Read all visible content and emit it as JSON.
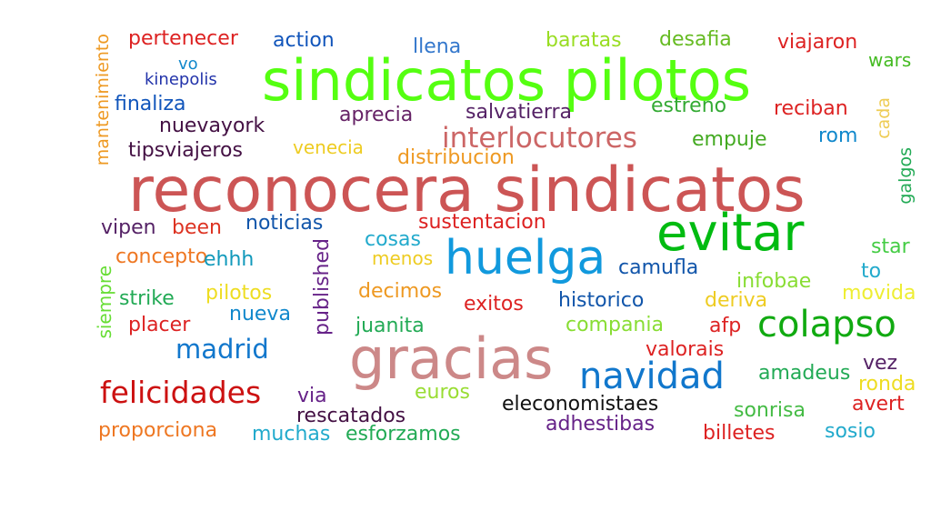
{
  "words": {
    "reconocera_sindicatos": {
      "text": "reconocera sindicatos",
      "color": "#cc5555"
    },
    "sindicatos_pilotos": {
      "text": "sindicatos pilotos",
      "color": "#55ff11"
    },
    "evitar": {
      "text": "evitar",
      "color": "#00bb11"
    },
    "huelga": {
      "text": "huelga",
      "color": "#1199dd"
    },
    "gracias": {
      "text": "gracias",
      "color": "#cc8888"
    },
    "colapso": {
      "text": "colapso",
      "color": "#11aa11"
    },
    "navidad": {
      "text": "navidad",
      "color": "#1177cc"
    },
    "felicidades": {
      "text": "felicidades",
      "color": "#cc1111"
    },
    "interlocutores": {
      "text": "interlocutores",
      "color": "#cc6666"
    },
    "madrid": {
      "text": "madrid",
      "color": "#1177cc"
    },
    "mantenimiento": {
      "text": "mantenimiento",
      "color": "#ee9922"
    },
    "pertenecer": {
      "text": "pertenecer",
      "color": "#dd2222"
    },
    "action": {
      "text": "action",
      "color": "#1155bb"
    },
    "llena": {
      "text": "llena",
      "color": "#3377cc"
    },
    "baratas": {
      "text": "baratas",
      "color": "#99dd22"
    },
    "desafia": {
      "text": "desafia",
      "color": "#66bb22"
    },
    "viajaron": {
      "text": "viajaron",
      "color": "#dd2222"
    },
    "vo": {
      "text": "vo",
      "color": "#1188cc"
    },
    "wars": {
      "text": "wars",
      "color": "#44bb22"
    },
    "kinepolis": {
      "text": "kinepolis",
      "color": "#2233aa"
    },
    "finaliza": {
      "text": "finaliza",
      "color": "#1155bb"
    },
    "aprecia": {
      "text": "aprecia",
      "color": "#662266"
    },
    "salvatierra": {
      "text": "salvatierra",
      "color": "#552266"
    },
    "estreno": {
      "text": "estreno",
      "color": "#33aa33"
    },
    "reciban": {
      "text": "reciban",
      "color": "#dd2222"
    },
    "nuevayork": {
      "text": "nuevayork",
      "color": "#441144"
    },
    "cada": {
      "text": "cada",
      "color": "#eecc55"
    },
    "rom": {
      "text": "rom",
      "color": "#1188cc"
    },
    "empuje": {
      "text": "empuje",
      "color": "#44aa22"
    },
    "tipsviajeros": {
      "text": "tipsviajeros",
      "color": "#441144"
    },
    "venecia": {
      "text": "venecia",
      "color": "#eecc22"
    },
    "distribucion": {
      "text": "distribucion",
      "color": "#ee9922"
    },
    "galgos": {
      "text": "galgos",
      "color": "#22aa55"
    },
    "vipen": {
      "text": "vipen",
      "color": "#552266"
    },
    "been": {
      "text": "been",
      "color": "#dd3322"
    },
    "noticias": {
      "text": "noticias",
      "color": "#1155aa"
    },
    "sustentacion": {
      "text": "sustentacion",
      "color": "#dd2222"
    },
    "star": {
      "text": "star",
      "color": "#44cc44"
    },
    "cosas": {
      "text": "cosas",
      "color": "#22aacc"
    },
    "published": {
      "text": "published",
      "color": "#662288"
    },
    "concepto": {
      "text": "concepto",
      "color": "#ee7722"
    },
    "ehhh": {
      "text": "ehhh",
      "color": "#1199bb"
    },
    "menos": {
      "text": "menos",
      "color": "#eecc22"
    },
    "camufla": {
      "text": "camufla",
      "color": "#1155aa"
    },
    "to": {
      "text": "to",
      "color": "#22aacc"
    },
    "infobae": {
      "text": "infobae",
      "color": "#88dd33"
    },
    "siempre": {
      "text": "siempre",
      "color": "#66dd33"
    },
    "strike": {
      "text": "strike",
      "color": "#22aa55"
    },
    "pilotos": {
      "text": "pilotos",
      "color": "#eedd22"
    },
    "decimos": {
      "text": "decimos",
      "color": "#ee9922"
    },
    "exitos": {
      "text": "exitos",
      "color": "#dd2222"
    },
    "historico": {
      "text": "historico",
      "color": "#1155aa"
    },
    "deriva": {
      "text": "deriva",
      "color": "#eecc22"
    },
    "movida": {
      "text": "movida",
      "color": "#eeee33"
    },
    "nueva": {
      "text": "nueva",
      "color": "#1188cc"
    },
    "placer": {
      "text": "placer",
      "color": "#dd2222"
    },
    "juanita": {
      "text": "juanita",
      "color": "#22aa55"
    },
    "compania": {
      "text": "compania",
      "color": "#88dd33"
    },
    "afp": {
      "text": "afp",
      "color": "#dd2222"
    },
    "valorais": {
      "text": "valorais",
      "color": "#dd2222"
    },
    "amadeus": {
      "text": "amadeus",
      "color": "#22aa55"
    },
    "vez": {
      "text": "vez",
      "color": "#552266"
    },
    "ronda": {
      "text": "ronda",
      "color": "#eedd22"
    },
    "via": {
      "text": "via",
      "color": "#662288"
    },
    "euros": {
      "text": "euros",
      "color": "#99dd33"
    },
    "eleconomistaes": {
      "text": "eleconomistaes",
      "color": "#111111"
    },
    "sonrisa": {
      "text": "sonrisa",
      "color": "#44bb44"
    },
    "avert": {
      "text": "avert",
      "color": "#dd2222"
    },
    "rescatados": {
      "text": "rescatados",
      "color": "#441144"
    },
    "adhestibas": {
      "text": "adhestibas",
      "color": "#662288"
    },
    "proporciona": {
      "text": "proporciona",
      "color": "#ee7722"
    },
    "muchas": {
      "text": "muchas",
      "color": "#22aacc"
    },
    "esforzamos": {
      "text": "esforzamos",
      "color": "#22aa55"
    },
    "billetes": {
      "text": "billetes",
      "color": "#dd2222"
    },
    "sosio": {
      "text": "sosio",
      "color": "#22aacc"
    }
  }
}
